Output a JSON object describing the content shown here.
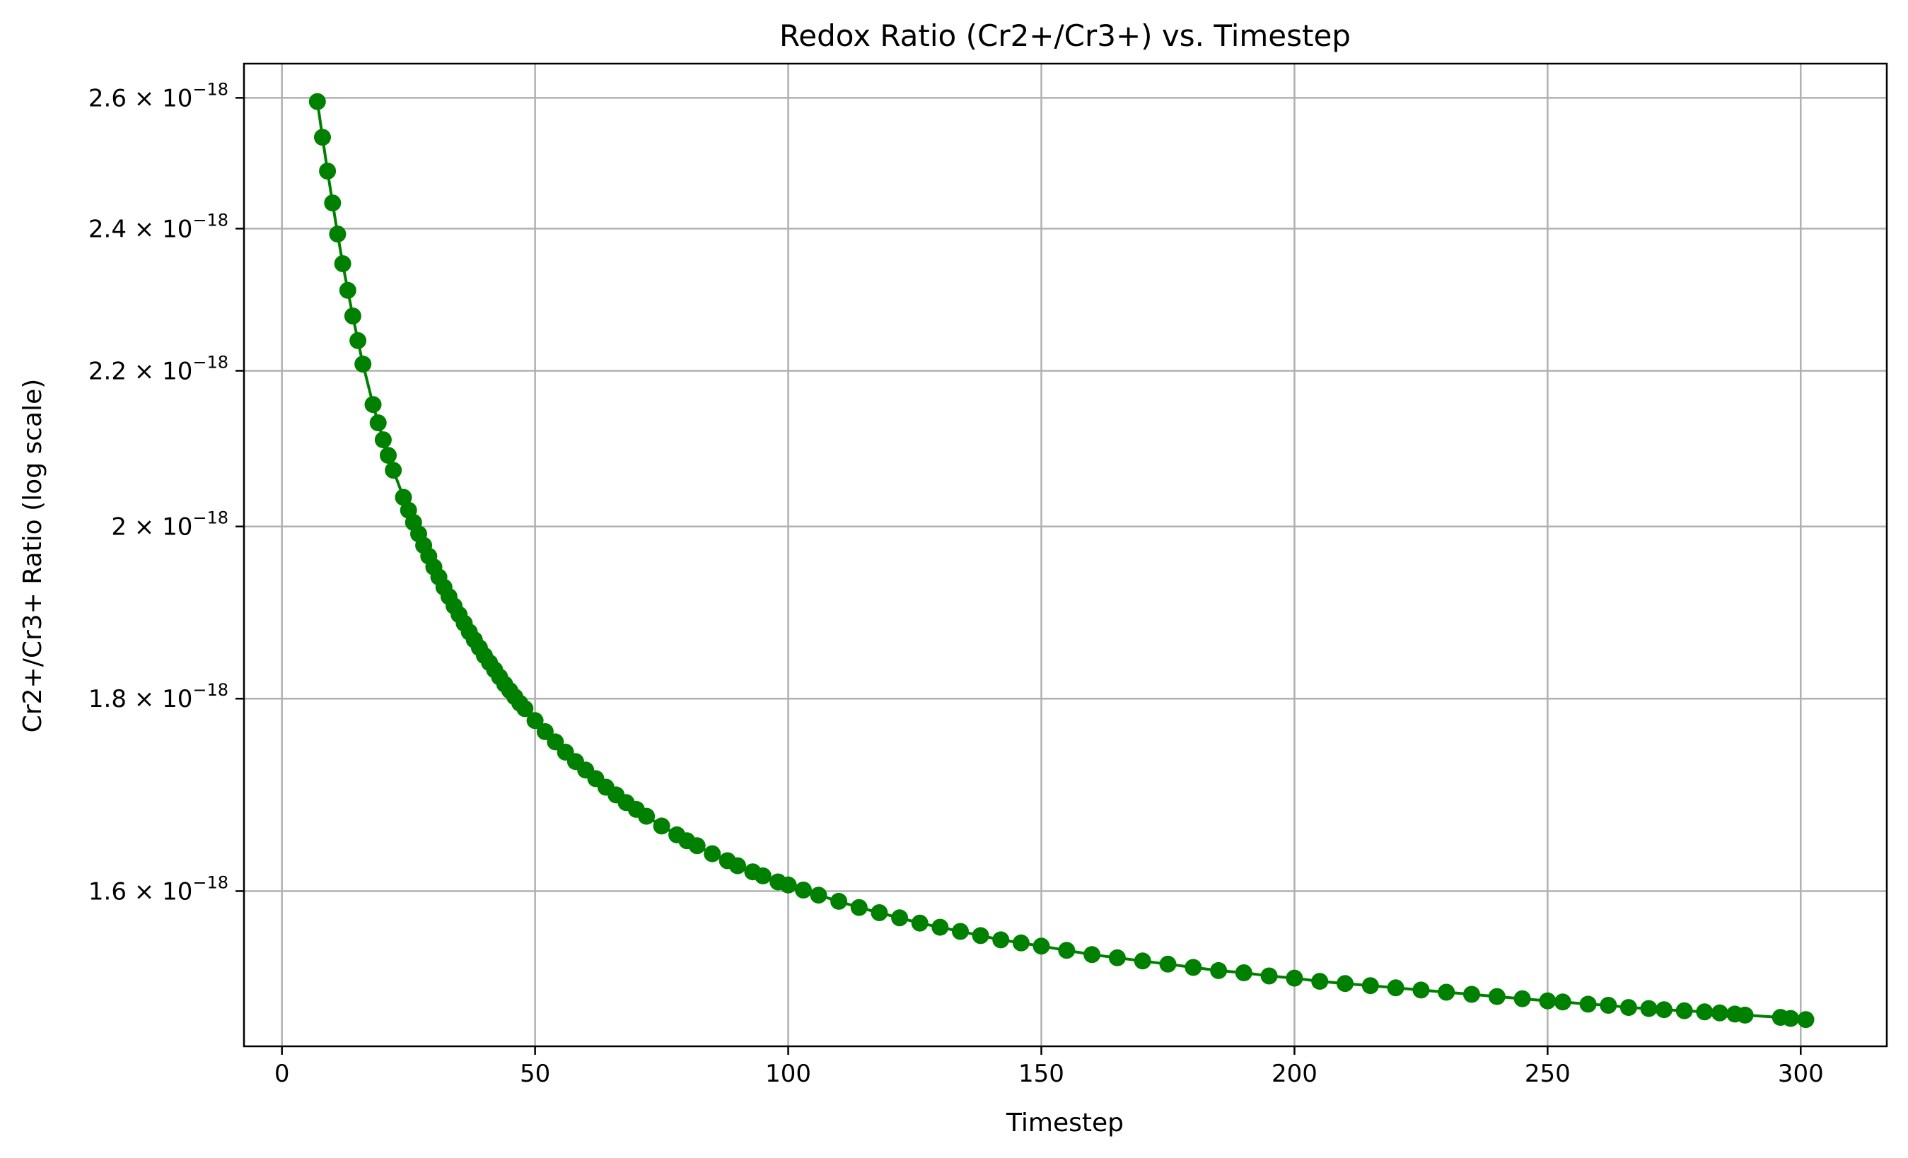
{
  "chart_data": {
    "type": "line",
    "title": "Redox Ratio (Cr2+/Cr3+) vs. Timestep",
    "xlabel": "Timestep",
    "ylabel": "Cr2+/Cr3+ Ratio (log scale)",
    "y_scale": "log",
    "grid": true,
    "color": "#008000",
    "marker": "circle",
    "xlim": [
      -7.5,
      317
    ],
    "ylim": [
      1.455e-18,
      2.655e-18
    ],
    "x_ticks": [
      {
        "value": 0,
        "label": "0"
      },
      {
        "value": 50,
        "label": "50"
      },
      {
        "value": 100,
        "label": "100"
      },
      {
        "value": 150,
        "label": "150"
      },
      {
        "value": 200,
        "label": "200"
      },
      {
        "value": 250,
        "label": "250"
      },
      {
        "value": 300,
        "label": "300"
      }
    ],
    "y_ticks": [
      {
        "value": 1.6e-18,
        "mantissa": "1.6",
        "exponent": "−18"
      },
      {
        "value": 1.8e-18,
        "mantissa": "1.8",
        "exponent": "−18"
      },
      {
        "value": 2e-18,
        "mantissa": "2",
        "exponent": "−18"
      },
      {
        "value": 2.2e-18,
        "mantissa": "2.2",
        "exponent": "−18"
      },
      {
        "value": 2.4e-18,
        "mantissa": "2.4",
        "exponent": "−18"
      },
      {
        "value": 2.6e-18,
        "mantissa": "2.6",
        "exponent": "−18"
      }
    ],
    "series": [
      {
        "x": [
          7,
          8,
          9,
          10,
          11,
          12,
          13,
          14,
          15,
          16,
          18,
          19,
          20,
          21,
          22,
          24,
          25,
          26,
          27,
          28,
          29,
          30,
          31,
          32,
          33,
          34,
          35,
          36,
          37,
          38,
          39,
          40,
          41,
          42,
          43,
          44,
          45,
          46,
          47,
          48,
          50,
          52,
          54,
          56,
          58,
          60,
          62,
          64,
          66,
          68,
          70,
          72,
          75,
          78,
          80,
          82,
          85,
          88,
          90,
          93,
          95,
          98,
          100,
          103,
          106,
          110,
          114,
          118,
          122,
          126,
          130,
          134,
          138,
          142,
          146,
          150,
          155,
          160,
          165,
          170,
          175,
          180,
          185,
          190,
          195,
          200,
          205,
          210,
          215,
          220,
          225,
          230,
          235,
          240,
          245,
          250,
          253,
          258,
          262,
          266,
          270,
          273,
          277,
          281,
          284,
          287,
          289,
          296,
          298,
          301
        ],
        "y": [
          2.594e-18,
          2.538e-18,
          2.486e-18,
          2.438e-18,
          2.392e-18,
          2.349e-18,
          2.311e-18,
          2.275e-18,
          2.241e-18,
          2.209e-18,
          2.155e-18,
          2.131e-18,
          2.109e-18,
          2.089e-18,
          2.07e-18,
          2.036e-18,
          2.02e-18,
          2.005e-18,
          1.991e-18,
          1.977e-18,
          1.964e-18,
          1.951e-18,
          1.939e-18,
          1.927e-18,
          1.916e-18,
          1.905e-18,
          1.895e-18,
          1.885e-18,
          1.875e-18,
          1.866e-18,
          1.857e-18,
          1.848e-18,
          1.84e-18,
          1.832e-18,
          1.824e-18,
          1.816e-18,
          1.809e-18,
          1.802e-18,
          1.795e-18,
          1.789e-18,
          1.776e-18,
          1.764e-18,
          1.753e-18,
          1.742e-18,
          1.732e-18,
          1.723e-18,
          1.714e-18,
          1.705e-18,
          1.697e-18,
          1.689e-18,
          1.682e-18,
          1.675e-18,
          1.665e-18,
          1.656e-18,
          1.65e-18,
          1.645e-18,
          1.637e-18,
          1.63e-18,
          1.625e-18,
          1.619e-18,
          1.615e-18,
          1.609e-18,
          1.606e-18,
          1.601e-18,
          1.596e-18,
          1.59e-18,
          1.584e-18,
          1.579e-18,
          1.574e-18,
          1.569e-18,
          1.565e-18,
          1.561e-18,
          1.557e-18,
          1.553e-18,
          1.55e-18,
          1.547e-18,
          1.543e-18,
          1.539e-18,
          1.536e-18,
          1.533e-18,
          1.53e-18,
          1.527e-18,
          1.524e-18,
          1.522e-18,
          1.519e-18,
          1.517e-18,
          1.514e-18,
          1.512e-18,
          1.51e-18,
          1.508e-18,
          1.506e-18,
          1.504e-18,
          1.502e-18,
          1.5e-18,
          1.498e-18,
          1.496e-18,
          1.495e-18,
          1.493e-18,
          1.492e-18,
          1.49e-18,
          1.489e-18,
          1.488e-18,
          1.487e-18,
          1.486e-18,
          1.485e-18,
          1.484e-18,
          1.483e-18,
          1.481e-18,
          1.48e-18,
          1.479e-18
        ]
      }
    ]
  }
}
